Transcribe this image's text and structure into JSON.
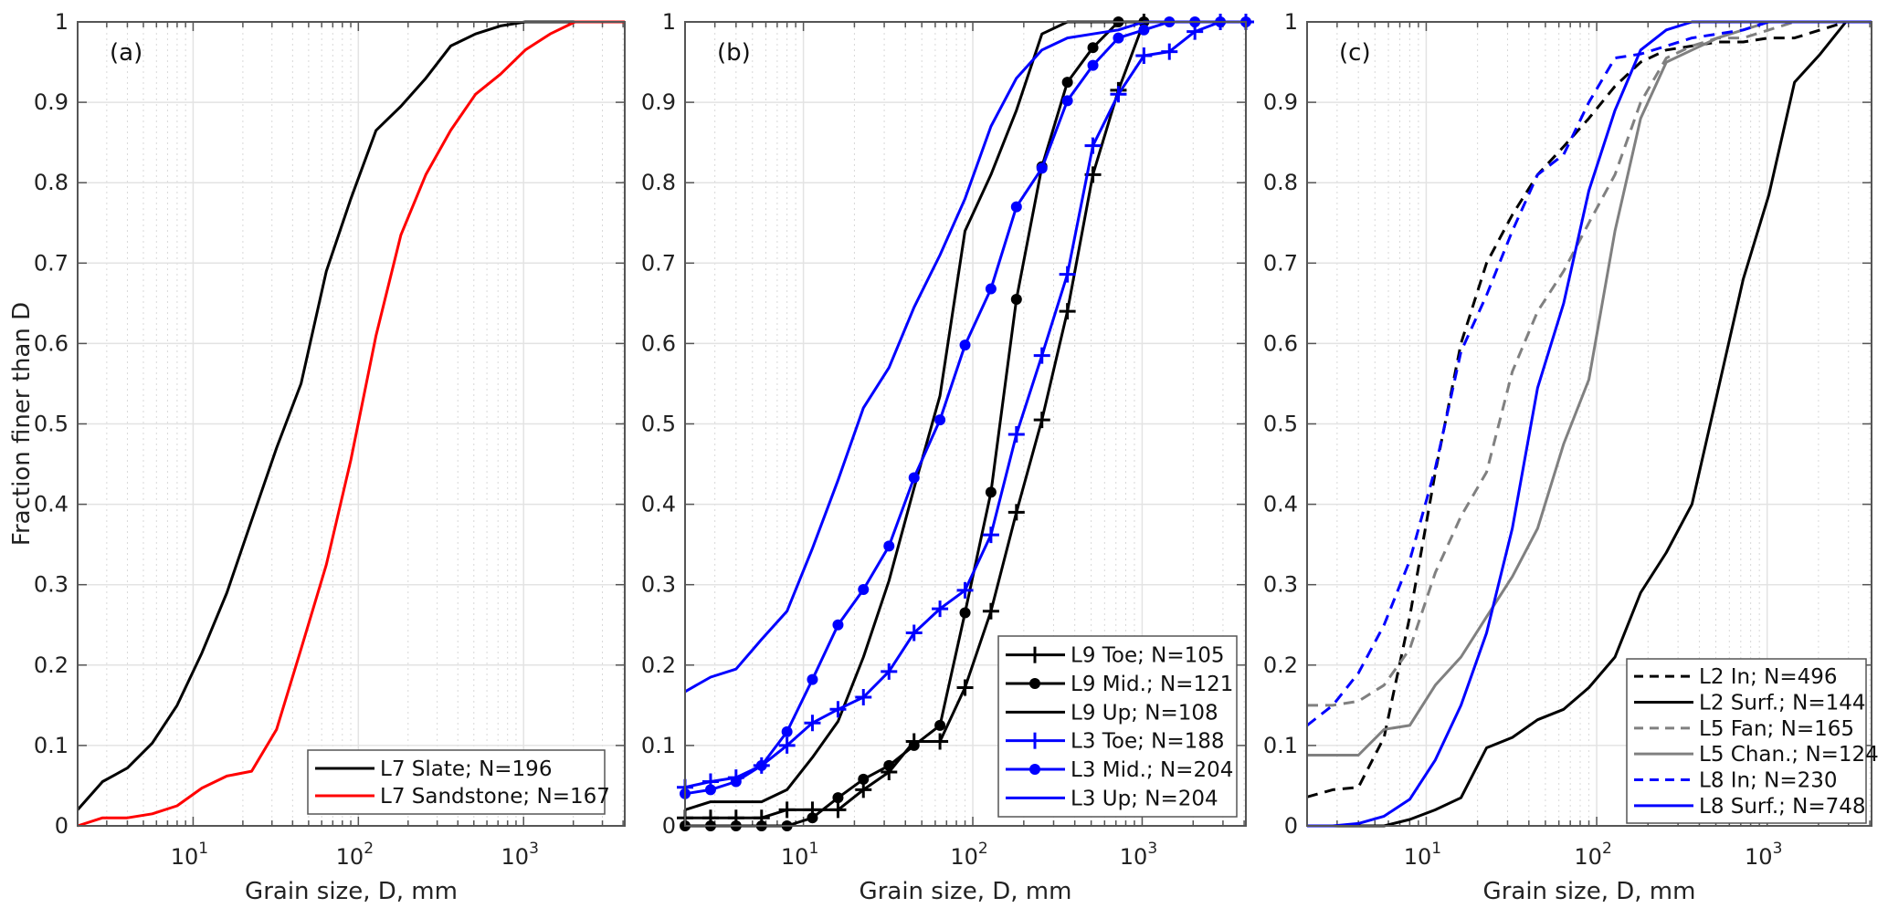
{
  "chart_data": [
    {
      "type": "line",
      "panel_label": "(a)",
      "xscale": "log",
      "xlim": [
        2,
        4096
      ],
      "ylim": [
        0,
        1
      ],
      "xlabel": "Grain size, D, mm",
      "ylabel": "Fraction finer than D",
      "xticks": [
        {
          "value": 10,
          "base": "10",
          "exp": "1"
        },
        {
          "value": 100,
          "base": "10",
          "exp": "2"
        },
        {
          "value": 1000,
          "base": "10",
          "exp": "3"
        }
      ],
      "yticks": [
        "0",
        "0.1",
        "0.2",
        "0.3",
        "0.4",
        "0.5",
        "0.6",
        "0.7",
        "0.8",
        "0.9",
        "1"
      ],
      "grid": true,
      "legend_position": "bottom-right",
      "x": [
        2,
        2.83,
        4,
        5.66,
        8,
        11.3,
        16,
        22.6,
        32,
        45,
        64,
        90,
        128,
        181,
        256,
        362,
        512,
        724,
        1024,
        1448,
        2048,
        2896,
        4096
      ],
      "series": [
        {
          "name": "L7 Slate; N=196",
          "color": "#000000",
          "dash": "solid",
          "marker": "none",
          "values": [
            0.02,
            0.055,
            0.072,
            0.103,
            0.15,
            0.215,
            0.29,
            0.38,
            0.47,
            0.55,
            0.69,
            0.78,
            0.865,
            0.895,
            0.93,
            0.97,
            0.985,
            0.995,
            1,
            1,
            1,
            1,
            1
          ]
        },
        {
          "name": "L7 Sandstone; N=167",
          "color": "#ff0000",
          "dash": "solid",
          "marker": "none",
          "values": [
            0,
            0.01,
            0.01,
            0.015,
            0.025,
            0.047,
            0.062,
            0.068,
            0.12,
            0.22,
            0.325,
            0.455,
            0.61,
            0.735,
            0.81,
            0.865,
            0.91,
            0.935,
            0.965,
            0.985,
            1,
            1,
            1
          ]
        }
      ]
    },
    {
      "type": "line",
      "panel_label": "(b)",
      "xscale": "log",
      "xlim": [
        2,
        4096
      ],
      "ylim": [
        0,
        1
      ],
      "xlabel": "Grain size, D, mm",
      "ylabel": "",
      "xticks": [
        {
          "value": 10,
          "base": "10",
          "exp": "1"
        },
        {
          "value": 100,
          "base": "10",
          "exp": "2"
        },
        {
          "value": 1000,
          "base": "10",
          "exp": "3"
        }
      ],
      "yticks": [
        "0",
        "0.1",
        "0.2",
        "0.3",
        "0.4",
        "0.5",
        "0.6",
        "0.7",
        "0.8",
        "0.9",
        "1"
      ],
      "grid": true,
      "legend_position": "bottom-right",
      "x": [
        2,
        2.83,
        4,
        5.66,
        8,
        11.3,
        16,
        22.6,
        32,
        45,
        64,
        90,
        128,
        181,
        256,
        362,
        512,
        724,
        1024,
        1448,
        2048,
        2896,
        4096
      ],
      "series": [
        {
          "name": "L9 Toe; N=105",
          "color": "#000000",
          "dash": "solid",
          "marker": "plus",
          "values": [
            0.01,
            0.01,
            0.01,
            0.01,
            0.02,
            0.02,
            0.02,
            0.045,
            0.067,
            0.105,
            0.105,
            0.172,
            0.267,
            0.39,
            0.505,
            0.64,
            0.81,
            0.915,
            1,
            null,
            null,
            null,
            null
          ]
        },
        {
          "name": "L9 Mid.; N=121",
          "color": "#000000",
          "dash": "solid",
          "marker": "dot",
          "values": [
            0,
            0,
            0,
            0,
            0,
            0.01,
            0.035,
            0.058,
            0.075,
            0.1,
            0.125,
            0.265,
            0.415,
            0.655,
            0.82,
            0.925,
            0.968,
            1,
            1,
            null,
            null,
            null,
            null
          ]
        },
        {
          "name": "L9 Up; N=108",
          "color": "#000000",
          "dash": "solid",
          "marker": "none",
          "values": [
            0.02,
            0.03,
            0.03,
            0.03,
            0.045,
            0.085,
            0.13,
            0.21,
            0.305,
            0.42,
            0.535,
            0.74,
            0.81,
            0.89,
            0.985,
            1,
            1,
            1,
            1,
            null,
            null,
            null,
            null
          ]
        },
        {
          "name": "L3 Toe; N=188",
          "color": "#0000ff",
          "dash": "solid",
          "marker": "plus",
          "values": [
            0.048,
            0.055,
            0.06,
            0.075,
            0.1,
            0.128,
            0.145,
            0.16,
            0.192,
            0.24,
            0.27,
            0.293,
            0.362,
            0.487,
            0.585,
            0.686,
            0.846,
            0.91,
            0.958,
            0.963,
            0.988,
            1,
            1
          ]
        },
        {
          "name": "L3 Mid.; N=204",
          "color": "#0000ff",
          "dash": "solid",
          "marker": "dot",
          "values": [
            0.04,
            0.045,
            0.055,
            0.075,
            0.117,
            0.182,
            0.25,
            0.294,
            0.348,
            0.433,
            0.505,
            0.598,
            0.668,
            0.77,
            0.818,
            0.902,
            0.946,
            0.98,
            0.99,
            1,
            1,
            1,
            1
          ]
        },
        {
          "name": "L3 Up; N=204",
          "color": "#0000ff",
          "dash": "solid",
          "marker": "none",
          "values": [
            0.167,
            0.185,
            0.195,
            0.232,
            0.267,
            0.345,
            0.43,
            0.52,
            0.57,
            0.645,
            0.71,
            0.78,
            0.87,
            0.93,
            0.965,
            0.98,
            0.985,
            0.99,
            1,
            1,
            1,
            1,
            1
          ]
        }
      ]
    },
    {
      "type": "line",
      "panel_label": "(c)",
      "xscale": "log",
      "xlim": [
        2,
        4096
      ],
      "ylim": [
        0,
        1
      ],
      "xlabel": "Grain size, D, mm",
      "ylabel": "",
      "xticks": [
        {
          "value": 10,
          "base": "10",
          "exp": "1"
        },
        {
          "value": 100,
          "base": "10",
          "exp": "2"
        },
        {
          "value": 1000,
          "base": "10",
          "exp": "3"
        }
      ],
      "yticks": [
        "0",
        "0.1",
        "0.2",
        "0.3",
        "0.4",
        "0.5",
        "0.6",
        "0.7",
        "0.8",
        "0.9",
        "1"
      ],
      "grid": true,
      "legend_position": "bottom-right",
      "x": [
        2,
        2.83,
        4,
        5.66,
        8,
        11.3,
        16,
        22.6,
        32,
        45,
        64,
        90,
        128,
        181,
        256,
        362,
        512,
        724,
        1024,
        1448,
        2048,
        2896,
        4096
      ],
      "series": [
        {
          "name": "L2 In; N=496",
          "color": "#000000",
          "dash": "dashed",
          "marker": "none",
          "values": [
            0.036,
            0.045,
            0.048,
            0.11,
            0.26,
            0.44,
            0.6,
            0.7,
            0.76,
            0.81,
            0.845,
            0.88,
            0.92,
            0.95,
            0.965,
            0.97,
            0.975,
            0.975,
            0.98,
            0.98,
            0.99,
            1,
            1
          ]
        },
        {
          "name": "L2 Surf.; N=144",
          "color": "#000000",
          "dash": "solid",
          "marker": "none",
          "values": [
            0,
            0,
            0,
            0,
            0.008,
            0.02,
            0.035,
            0.097,
            0.11,
            0.132,
            0.145,
            0.172,
            0.21,
            0.29,
            0.34,
            0.4,
            0.54,
            0.68,
            0.785,
            0.925,
            0.96,
            1,
            1
          ]
        },
        {
          "name": "L5 Fan; N=165",
          "color": "#808080",
          "dash": "dashed",
          "marker": "none",
          "values": [
            0.15,
            0.15,
            0.155,
            0.175,
            0.22,
            0.315,
            0.385,
            0.44,
            0.565,
            0.64,
            0.69,
            0.75,
            0.81,
            0.9,
            0.955,
            0.97,
            0.98,
            0.98,
            0.99,
            1,
            null,
            null,
            null
          ]
        },
        {
          "name": "L5 Chan.; N=124",
          "color": "#808080",
          "dash": "solid",
          "marker": "none",
          "values": [
            0.088,
            0.088,
            0.088,
            0.12,
            0.125,
            0.175,
            0.21,
            0.26,
            0.31,
            0.37,
            0.475,
            0.555,
            0.74,
            0.88,
            0.95,
            0.965,
            0.98,
            0.99,
            1,
            null,
            null,
            null,
            null
          ]
        },
        {
          "name": "L8 In; N=230",
          "color": "#0000ff",
          "dash": "dashed",
          "marker": "none",
          "values": [
            0.125,
            0.15,
            0.19,
            0.25,
            0.33,
            0.445,
            0.59,
            0.66,
            0.74,
            0.81,
            0.835,
            0.9,
            0.955,
            0.96,
            0.97,
            0.98,
            0.985,
            0.99,
            1,
            null,
            null,
            null,
            null
          ]
        },
        {
          "name": "L8 Surf.; N=748",
          "color": "#0000ff",
          "dash": "solid",
          "marker": "none",
          "values": [
            0,
            0,
            0.003,
            0.012,
            0.033,
            0.082,
            0.15,
            0.24,
            0.37,
            0.545,
            0.65,
            0.79,
            0.89,
            0.965,
            0.99,
            1,
            1,
            1,
            1,
            1,
            1,
            1,
            1
          ]
        }
      ]
    }
  ]
}
